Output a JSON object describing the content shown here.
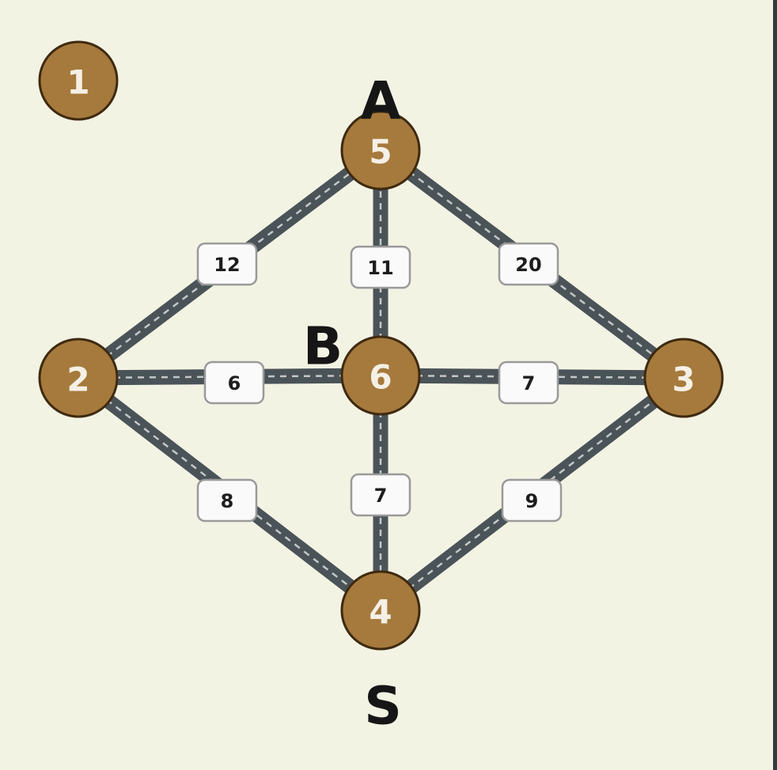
{
  "diagram": {
    "colors": {
      "background": "#f3f3e4",
      "node_fill": "#a67a3c",
      "node_border": "#3e2a10",
      "road": "#4a5358",
      "road_dash": "#c3c7c6",
      "label_box": "#fafafa",
      "text_dark": "#161616"
    },
    "problem_number": "1",
    "nodes": [
      {
        "id": "5",
        "label": "5"
      },
      {
        "id": "2",
        "label": "2"
      },
      {
        "id": "6",
        "label": "6"
      },
      {
        "id": "3",
        "label": "3"
      },
      {
        "id": "4",
        "label": "4"
      }
    ],
    "letters": [
      {
        "text": "A",
        "node": "5"
      },
      {
        "text": "B",
        "node": "6"
      },
      {
        "text": "S",
        "node": "4"
      }
    ],
    "edges": [
      {
        "from": "2",
        "to": "5",
        "weight": "12"
      },
      {
        "from": "6",
        "to": "5",
        "weight": "11"
      },
      {
        "from": "5",
        "to": "3",
        "weight": "20"
      },
      {
        "from": "2",
        "to": "6",
        "weight": "6"
      },
      {
        "from": "6",
        "to": "3",
        "weight": "7"
      },
      {
        "from": "2",
        "to": "4",
        "weight": "8"
      },
      {
        "from": "6",
        "to": "4",
        "weight": "7"
      },
      {
        "from": "4",
        "to": "3",
        "weight": "9"
      }
    ]
  }
}
